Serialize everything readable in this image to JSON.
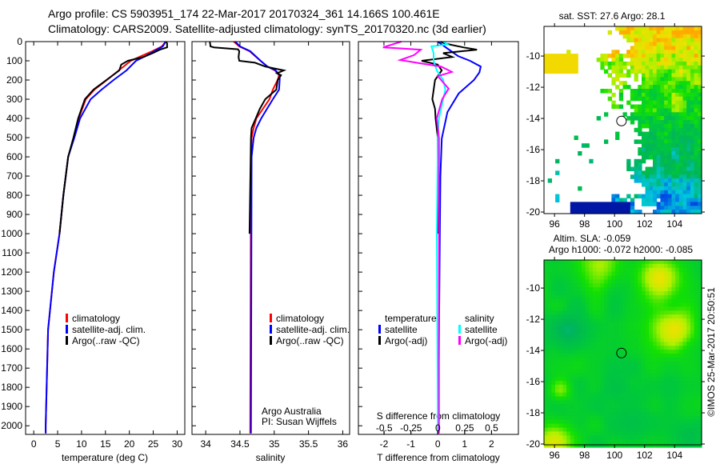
{
  "header": {
    "title_line1": "Argo profile: CS 5903951_174 22-Mar-2017 20170324_361 14.166S 100.461E",
    "title_line2": "Climatology: CARS2009. Satellite-adjusted climatology: synTS_20170320.nc (3d earlier)"
  },
  "colors": {
    "climatology": "#ff0000",
    "satellite": "#0000ff",
    "argo": "#000000",
    "sat_salinity": "#00ffff",
    "argo_salinity": "#ff00ff"
  },
  "credit": {
    "org": "Argo Australia",
    "pi": "PI: Susan Wijffels",
    "stamp": "©IMOS 25-Mar-2017 20:50:51"
  },
  "chart_data": [
    {
      "type": "line",
      "id": "temperature",
      "xlabel": "temperature (deg C)",
      "ylabel": "",
      "xlim": [
        -1.7,
        31.6
      ],
      "ylim": [
        2045,
        0
      ],
      "xticks": [
        0,
        5,
        10,
        15,
        20,
        25,
        30
      ],
      "yticks": [
        0,
        100,
        200,
        300,
        400,
        500,
        600,
        700,
        800,
        900,
        1000,
        1100,
        1200,
        1300,
        1400,
        1500,
        1600,
        1700,
        1800,
        1900,
        2000
      ],
      "legend": [
        "climatology",
        "satellite-adj. clim.",
        "Argo(..raw -QC)"
      ],
      "series": [
        {
          "name": "climatology",
          "color": "#ff0000",
          "depth": [
            0,
            25,
            50,
            75,
            100,
            150,
            200,
            250,
            300,
            400,
            500,
            600,
            700,
            800,
            1000,
            1200,
            1500,
            1800,
            2000,
            2040
          ],
          "values": [
            27.6,
            26.8,
            24.8,
            22.5,
            20.3,
            17.8,
            15.3,
            12.7,
            10.9,
            9.4,
            8.4,
            7.2,
            6.7,
            6.2,
            5.4,
            4.2,
            3.0,
            2.7,
            2.5,
            2.5
          ]
        },
        {
          "name": "satellite-adj. clim.",
          "color": "#0000ff",
          "depth": [
            0,
            25,
            50,
            75,
            100,
            150,
            200,
            250,
            300,
            400,
            500,
            600,
            700,
            800,
            1000,
            1200,
            1500,
            1800,
            2000,
            2040
          ],
          "values": [
            27.6,
            27.0,
            25.2,
            23.4,
            21.4,
            19.4,
            16.7,
            14.2,
            11.9,
            9.7,
            8.5,
            7.2,
            6.7,
            6.2,
            5.4,
            4.2,
            3.0,
            2.7,
            2.5,
            2.5
          ]
        },
        {
          "name": "Argo(..raw -QC)",
          "color": "#000000",
          "depth": [
            0,
            10,
            30,
            42,
            60,
            80,
            100,
            120,
            150,
            200,
            250,
            300,
            350,
            400,
            500,
            600,
            800,
            1000
          ],
          "values": [
            27.7,
            27.9,
            27.9,
            26.4,
            24.9,
            23.0,
            19.7,
            18.3,
            17.9,
            15.2,
            12.5,
            10.7,
            10.0,
            9.3,
            8.3,
            7.2,
            6.2,
            5.4
          ]
        }
      ]
    },
    {
      "type": "line",
      "id": "salinity",
      "xlabel": "salinity",
      "xlim": [
        33.8,
        36.1
      ],
      "ylim": [
        2045,
        0
      ],
      "xticks": [
        34,
        34.5,
        35,
        35.5,
        36
      ],
      "legend": [
        "climatology",
        "satellite-adj. clim.",
        "Argo(..raw -QC)"
      ],
      "series": [
        {
          "name": "climatology",
          "color": "#ff0000",
          "depth": [
            0,
            25,
            50,
            100,
            130,
            150,
            175,
            200,
            250,
            300,
            400,
            450,
            500,
            600,
            2040
          ],
          "values": [
            34.41,
            34.49,
            34.64,
            34.8,
            34.9,
            35.01,
            35.07,
            35.05,
            34.98,
            34.93,
            34.74,
            34.7,
            34.67,
            34.66,
            34.65
          ]
        },
        {
          "name": "satellite-adj. clim.",
          "color": "#0000ff",
          "depth": [
            0,
            25,
            50,
            100,
            130,
            150,
            175,
            200,
            250,
            300,
            400,
            450,
            500,
            600,
            2040
          ],
          "values": [
            34.43,
            34.5,
            34.65,
            34.8,
            34.9,
            35.02,
            35.08,
            35.08,
            35.07,
            34.98,
            34.81,
            34.74,
            34.7,
            34.67,
            34.66
          ]
        },
        {
          "name": "Argo(..raw -QC)",
          "color": "#000000",
          "depth": [
            0,
            25,
            30,
            40,
            50,
            80,
            100,
            110,
            130,
            150,
            165,
            175,
            200,
            250,
            300,
            350,
            400,
            450,
            500,
            1000
          ],
          "values": [
            34.06,
            34.07,
            34.12,
            34.47,
            34.49,
            34.48,
            34.49,
            34.72,
            34.87,
            35.14,
            35.04,
            35.1,
            35.05,
            35.03,
            34.87,
            34.79,
            34.73,
            34.67,
            34.66,
            34.64
          ]
        }
      ]
    },
    {
      "type": "line",
      "id": "difference",
      "xlabel": "T difference from climatology",
      "x2label": "S difference from climatology",
      "xlim": [
        -2.95,
        3.0
      ],
      "x2lim": [
        -0.74,
        0.75
      ],
      "ylim": [
        2045,
        0
      ],
      "xticks": [
        -2,
        -1,
        0,
        1,
        2
      ],
      "x2ticks": [
        -0.5,
        -0.25,
        0,
        0.25,
        0.5
      ],
      "legend_titles": [
        "temperature",
        "salinity"
      ],
      "legend": [
        "satellite",
        "Argo(-adj)",
        "satellite",
        "Argo(-adj)"
      ],
      "series": [
        {
          "name": "temperature satellite",
          "axis": "T",
          "color": "#0000ff",
          "depth": [
            0,
            20,
            50,
            75,
            100,
            130,
            160,
            200,
            270,
            367,
            505,
            700,
            1000,
            1500,
            2040
          ],
          "values": [
            0,
            0.2,
            0.5,
            0.75,
            1.2,
            1.6,
            1.55,
            1.35,
            0.78,
            0.36,
            0.15,
            0.1,
            0.08,
            0.05,
            0.02
          ]
        },
        {
          "name": "temperature Argo(-adj)",
          "axis": "T",
          "color": "#000000",
          "depth": [
            0,
            10,
            30,
            42,
            60,
            80,
            100,
            120,
            150,
            200,
            250,
            300,
            350,
            400,
            500,
            1000
          ],
          "values": [
            0.1,
            0.27,
            0.95,
            1.46,
            0.2,
            0.54,
            -0.6,
            0,
            0.15,
            -0.1,
            -0.15,
            -0.2,
            -0.1,
            -0.08,
            0,
            0
          ]
        },
        {
          "name": "salinity satellite",
          "axis": "S",
          "color": "#00ffff",
          "depth": [
            0,
            15,
            25,
            60,
            100,
            150,
            200,
            250,
            300,
            400,
            500,
            1000,
            2040
          ],
          "values": [
            0.05,
            0.09,
            -0.06,
            -0.04,
            -0.04,
            -0.01,
            0.05,
            0.07,
            0.05,
            0.01,
            0,
            -0.01,
            0
          ]
        },
        {
          "name": "salinity Argo(-adj)",
          "axis": "S",
          "color": "#ff00ff",
          "depth": [
            0,
            30,
            42,
            70,
            96,
            110,
            130,
            158,
            180,
            200,
            245,
            300,
            400,
            500,
            1000,
            2040
          ],
          "values": [
            -0.34,
            -0.51,
            -0.16,
            -0.22,
            -0.35,
            -0.2,
            0.03,
            0.13,
            0,
            0.03,
            0.1,
            0.04,
            -0.01,
            0.01,
            0.01,
            0.01
          ]
        }
      ]
    },
    {
      "type": "heatmap",
      "id": "sst-map",
      "title": "sat. SST: 27.6 Argo: 28.1",
      "xlim": [
        95.3,
        105.8
      ],
      "ylim": [
        -20.1,
        -8.1
      ],
      "xticks": [
        96,
        98,
        100,
        102,
        104
      ],
      "yticks": [
        -10,
        -12,
        -14,
        -16,
        -18,
        -20
      ],
      "marker": {
        "lon": 100.461,
        "lat": -14.166
      }
    },
    {
      "type": "heatmap",
      "id": "sla-map",
      "title": "Altim. SLA: -0.059",
      "subtitle": "Argo h1000: -0.072 h2000: -0.085",
      "xlim": [
        95.3,
        105.8
      ],
      "ylim": [
        -20.05,
        -8.2
      ],
      "xticks": [
        96,
        98,
        100,
        102,
        104
      ],
      "yticks": [
        -10,
        -12,
        -14,
        -16,
        -18,
        -20
      ],
      "marker": {
        "lon": 100.461,
        "lat": -14.166
      }
    }
  ]
}
